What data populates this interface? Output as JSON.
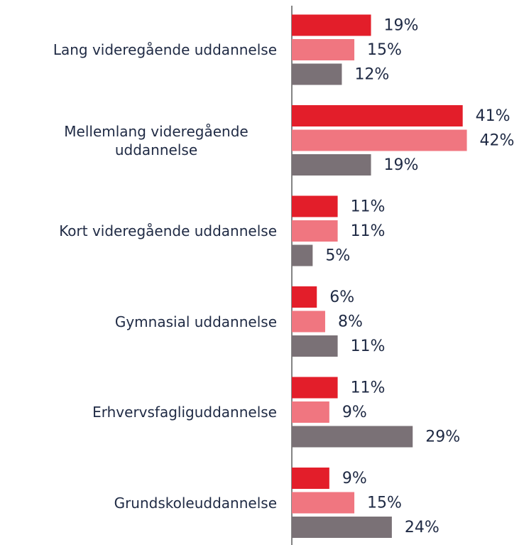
{
  "chart_data": {
    "type": "bar",
    "orientation": "horizontal",
    "categories": [
      "Lang videregående uddannelse",
      "Mellemlang videregående uddannelse",
      "Kort videregående uddannelse",
      "Gymnasial uddannelse",
      "Erhvervsfagliguddannelse",
      "Grundskoleuddannelse"
    ],
    "series": [
      {
        "color": "#e31e2a",
        "values": [
          19,
          41,
          11,
          6,
          11,
          9
        ],
        "value_labels": [
          "19%",
          "41%",
          "11%",
          "6%",
          "11%",
          "9%"
        ]
      },
      {
        "color": "#f07680",
        "values": [
          15,
          42,
          11,
          8,
          9,
          15
        ],
        "value_labels": [
          "15%",
          "42%",
          "11%",
          "8%",
          "9%",
          "15%"
        ]
      },
      {
        "color": "#7a7176",
        "values": [
          12,
          19,
          5,
          11,
          29,
          24
        ],
        "value_labels": [
          "12%",
          "19%",
          "5%",
          "11%",
          "29%",
          "24%"
        ]
      }
    ]
  }
}
